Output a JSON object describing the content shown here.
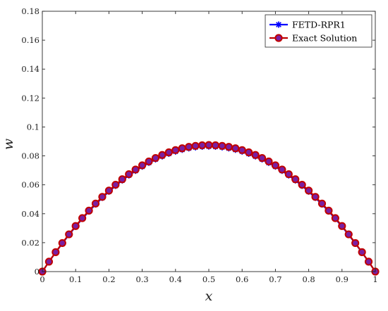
{
  "chart_data": {
    "type": "line",
    "title": "",
    "xlabel": "x",
    "ylabel": "w",
    "xlim": [
      0,
      1
    ],
    "ylim": [
      0,
      0.18
    ],
    "xticks": [
      0,
      0.1,
      0.2,
      0.3,
      0.4,
      0.5,
      0.6,
      0.7,
      0.8,
      0.9,
      1
    ],
    "xtick_labels": [
      "0",
      "0.1",
      "0.2",
      "0.3",
      "0.4",
      "0.5",
      "0.6",
      "0.7",
      "0.8",
      "0.9",
      "1"
    ],
    "yticks": [
      0,
      0.02,
      0.04,
      0.06,
      0.08,
      0.1,
      0.12,
      0.14,
      0.16,
      0.18
    ],
    "ytick_labels": [
      "0",
      "0.02",
      "0.04",
      "0.06",
      "0.08",
      "0.1",
      "0.12",
      "0.14",
      "0.16",
      "0.18"
    ],
    "grid": false,
    "legend_position": "top-right",
    "x": [
      0,
      0.02,
      0.04,
      0.06,
      0.08,
      0.1,
      0.12,
      0.14,
      0.16,
      0.18,
      0.2,
      0.22,
      0.24,
      0.26,
      0.28,
      0.3,
      0.32,
      0.34,
      0.36,
      0.38,
      0.4,
      0.42,
      0.44,
      0.46,
      0.48,
      0.5,
      0.52,
      0.54,
      0.56,
      0.58,
      0.6,
      0.62,
      0.64,
      0.66,
      0.68,
      0.7,
      0.72,
      0.74,
      0.76,
      0.78,
      0.8,
      0.82,
      0.84,
      0.86,
      0.88,
      0.9,
      0.92,
      0.94,
      0.96,
      0.98,
      1
    ],
    "series": [
      {
        "name": "FETD-RPR1",
        "color": "#0000ff",
        "marker": "asterisk",
        "values": [
          0,
          0.006776,
          0.013276,
          0.019499,
          0.025446,
          0.031117,
          0.036511,
          0.041629,
          0.04647,
          0.051035,
          0.055324,
          0.059336,
          0.063072,
          0.066532,
          0.069715,
          0.072622,
          0.075252,
          0.077606,
          0.079684,
          0.081486,
          0.083011,
          0.084259,
          0.085232,
          0.085928,
          0.086347,
          0.086491,
          0.086347,
          0.085928,
          0.085232,
          0.084259,
          0.083011,
          0.081486,
          0.079684,
          0.077606,
          0.075252,
          0.072622,
          0.069715,
          0.066532,
          0.063072,
          0.059336,
          0.055324,
          0.051035,
          0.04647,
          0.041629,
          0.036511,
          0.031117,
          0.025446,
          0.019499,
          0.013276,
          0.006776,
          0
        ]
      },
      {
        "name": "Exact Solution",
        "color": "#c00000",
        "marker": "circle",
        "marker_fill": "#7a1fa2",
        "values": [
          0,
          0.00686,
          0.01344,
          0.01974,
          0.02576,
          0.0315,
          0.03696,
          0.04214,
          0.04704,
          0.05166,
          0.056,
          0.06006,
          0.06384,
          0.06734,
          0.07056,
          0.0735,
          0.07616,
          0.07854,
          0.08064,
          0.08246,
          0.084,
          0.08526,
          0.08624,
          0.08694,
          0.08736,
          0.0875,
          0.08736,
          0.08694,
          0.08624,
          0.08526,
          0.084,
          0.08246,
          0.08064,
          0.07854,
          0.07616,
          0.0735,
          0.07056,
          0.06734,
          0.06384,
          0.06006,
          0.056,
          0.05166,
          0.04704,
          0.04214,
          0.03696,
          0.0315,
          0.02576,
          0.01974,
          0.01344,
          0.00686,
          0
        ]
      }
    ]
  }
}
